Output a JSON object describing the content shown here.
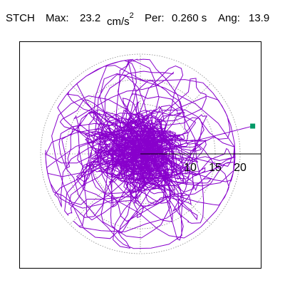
{
  "header": {
    "station": "STCH",
    "max_label": "Max:",
    "max_value": "23.2",
    "max_unit": "cm/s",
    "max_exp": "2",
    "per_label": "Per:",
    "per_value": "0.260 s",
    "ang_label": "Ang:",
    "ang_value": "13.9"
  },
  "plot": {
    "tick_labels": [
      "10",
      "15",
      "20"
    ],
    "trace_color": "#8800cc",
    "marker_color": "#009966",
    "grid_color": "#888888"
  },
  "chart_data": {
    "type": "scatter",
    "title": "",
    "xlabel": "",
    "ylabel": "",
    "r_ticks": [
      10,
      15,
      20
    ],
    "rings": [
      5,
      10,
      15,
      20
    ],
    "radial_lines_deg": [
      0,
      45,
      90,
      135,
      180,
      225,
      270,
      315
    ],
    "max_point": {
      "r": 23.2,
      "angle_deg": 13.9
    },
    "series": [
      {
        "values_description_only_in_script": true
      }
    ]
  }
}
